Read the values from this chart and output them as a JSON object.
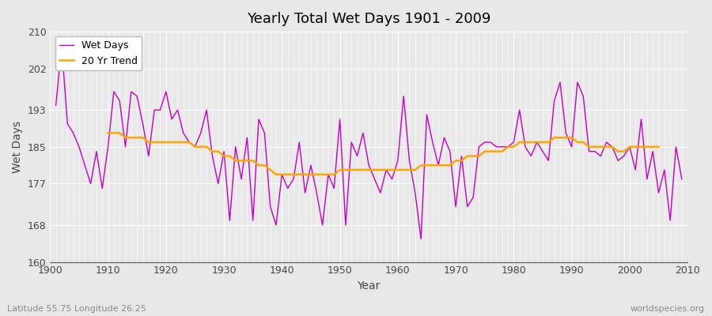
{
  "title": "Yearly Total Wet Days 1901 - 2009",
  "xlabel": "Year",
  "ylabel": "Wet Days",
  "footnote_left": "Latitude 55.75 Longitude 26.25",
  "footnote_right": "worldspecies.org",
  "ylim": [
    160,
    210
  ],
  "yticks": [
    160,
    168,
    177,
    185,
    193,
    202,
    210
  ],
  "xlim": [
    1900,
    2010
  ],
  "background_color": "#e8e8e8",
  "plot_bg_color": "#e8e8e8",
  "wet_days_color": "#c000c0",
  "trend_color": "#ffa500",
  "wet_days_linewidth": 1.0,
  "trend_linewidth": 1.8,
  "legend_wet": "Wet Days",
  "legend_trend": "20 Yr Trend",
  "years": [
    1901,
    1902,
    1903,
    1904,
    1905,
    1906,
    1907,
    1908,
    1909,
    1910,
    1911,
    1912,
    1913,
    1914,
    1915,
    1916,
    1917,
    1918,
    1919,
    1920,
    1921,
    1922,
    1923,
    1924,
    1925,
    1926,
    1927,
    1928,
    1929,
    1930,
    1931,
    1932,
    1933,
    1934,
    1935,
    1936,
    1937,
    1938,
    1939,
    1940,
    1941,
    1942,
    1943,
    1944,
    1945,
    1946,
    1947,
    1948,
    1949,
    1950,
    1951,
    1952,
    1953,
    1954,
    1955,
    1956,
    1957,
    1958,
    1959,
    1960,
    1961,
    1962,
    1963,
    1964,
    1965,
    1966,
    1967,
    1968,
    1969,
    1970,
    1971,
    1972,
    1973,
    1974,
    1975,
    1976,
    1977,
    1978,
    1979,
    1980,
    1981,
    1982,
    1983,
    1984,
    1985,
    1986,
    1987,
    1988,
    1989,
    1990,
    1991,
    1992,
    1993,
    1994,
    1995,
    1996,
    1997,
    1998,
    1999,
    2000,
    2001,
    2002,
    2003,
    2004,
    2005,
    2006,
    2007,
    2008,
    2009
  ],
  "wet_days": [
    194,
    207,
    190,
    188,
    185,
    181,
    177,
    184,
    176,
    185,
    197,
    195,
    185,
    197,
    196,
    190,
    183,
    193,
    193,
    197,
    191,
    193,
    188,
    186,
    185,
    188,
    193,
    183,
    177,
    184,
    169,
    185,
    178,
    187,
    169,
    191,
    188,
    172,
    168,
    179,
    176,
    178,
    186,
    175,
    181,
    175,
    168,
    179,
    176,
    191,
    168,
    186,
    183,
    188,
    181,
    178,
    175,
    180,
    178,
    182,
    196,
    182,
    175,
    165,
    192,
    186,
    181,
    187,
    184,
    172,
    183,
    172,
    174,
    185,
    186,
    186,
    185,
    185,
    185,
    186,
    193,
    185,
    183,
    186,
    184,
    182,
    195,
    199,
    188,
    185,
    199,
    196,
    184,
    184,
    183,
    186,
    185,
    182,
    183,
    185,
    180,
    191,
    178,
    184,
    175,
    180,
    169,
    185,
    178
  ],
  "trend": [
    null,
    null,
    null,
    null,
    null,
    null,
    null,
    null,
    null,
    188,
    188,
    188,
    187,
    187,
    187,
    187,
    186,
    186,
    186,
    186,
    186,
    186,
    186,
    186,
    185,
    185,
    185,
    184,
    184,
    183,
    183,
    182,
    182,
    182,
    182,
    181,
    181,
    180,
    179,
    179,
    179,
    179,
    179,
    179,
    179,
    179,
    179,
    179,
    179,
    180,
    180,
    180,
    180,
    180,
    180,
    180,
    180,
    180,
    180,
    180,
    180,
    180,
    180,
    181,
    181,
    181,
    181,
    181,
    181,
    182,
    182,
    183,
    183,
    183,
    184,
    184,
    184,
    184,
    185,
    185,
    186,
    186,
    186,
    186,
    186,
    186,
    187,
    187,
    187,
    187,
    186,
    186,
    185,
    185,
    185,
    185,
    185,
    184,
    184,
    185,
    185,
    185,
    185,
    185,
    185,
    null,
    null,
    null,
    null
  ]
}
